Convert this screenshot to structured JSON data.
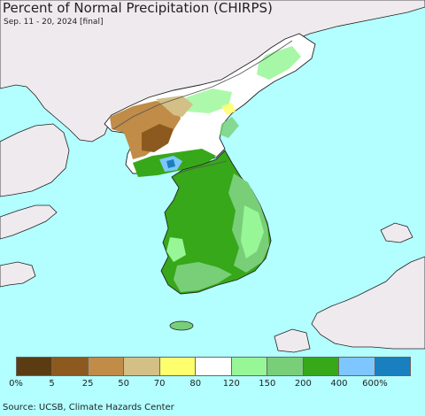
{
  "title": "Percent of Normal Precipitation (CHIRPS)",
  "subtitle": "Sep. 11 - 20, 2024 [final]",
  "source": "Source: UCSB, Climate Hazards Center",
  "map_colors": {
    "ocean": "#b3ffff",
    "land_outside": "#eeeaee",
    "coast_line": "#222222",
    "border_line": "#555555"
  },
  "legend": {
    "colors": [
      "#5a3b12",
      "#8c5a1e",
      "#c08c48",
      "#d4bf86",
      "#ffff6e",
      "#ffffff",
      "#97f797",
      "#78cf78",
      "#37a81a",
      "#7ec6ff",
      "#1a7fbf"
    ],
    "labels": [
      "0%",
      "5",
      "25",
      "50",
      "70",
      "80",
      "120",
      "150",
      "200",
      "400",
      "600%"
    ]
  }
}
